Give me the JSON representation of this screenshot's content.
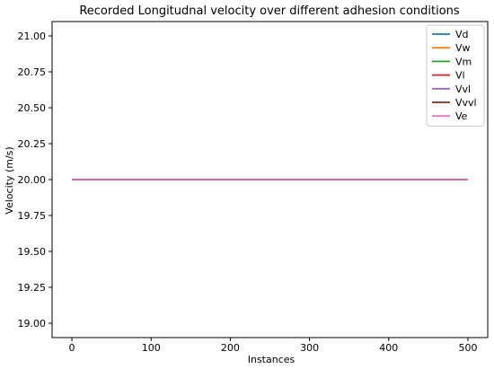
{
  "chart_data": {
    "type": "line",
    "title": "Recorded Longitudnal velocity over different adhesion conditions",
    "xlabel": "Instances",
    "ylabel": "Velocity (m/s)",
    "xlim": [
      -25,
      525
    ],
    "ylim": [
      18.9,
      21.1
    ],
    "xticks": [
      0,
      100,
      200,
      300,
      400,
      500
    ],
    "yticks": [
      19.0,
      19.25,
      19.5,
      19.75,
      20.0,
      20.25,
      20.5,
      20.75,
      21.0
    ],
    "ytick_labels": [
      "19.00",
      "19.25",
      "19.50",
      "19.75",
      "20.00",
      "20.25",
      "20.50",
      "20.75",
      "21.00"
    ],
    "grid": false,
    "legend_position": "top-right",
    "series": [
      {
        "name": "Vd",
        "color": "#1f77b4",
        "x": [
          0,
          500
        ],
        "y": [
          20.0,
          20.0
        ]
      },
      {
        "name": "Vw",
        "color": "#ff7f0e",
        "x": [
          0,
          500
        ],
        "y": [
          20.0,
          20.0
        ]
      },
      {
        "name": "Vm",
        "color": "#2ca02c",
        "x": [
          0,
          500
        ],
        "y": [
          20.0,
          20.0
        ]
      },
      {
        "name": "Vl",
        "color": "#d62728",
        "x": [
          0,
          500
        ],
        "y": [
          20.0,
          20.0
        ]
      },
      {
        "name": "Vvl",
        "color": "#9467bd",
        "x": [
          0,
          500
        ],
        "y": [
          20.0,
          20.0
        ]
      },
      {
        "name": "Vvvl",
        "color": "#8c2d19",
        "x": [
          0,
          500
        ],
        "y": [
          20.0,
          20.0
        ]
      },
      {
        "name": "Ve",
        "color": "#e377c2",
        "x": [
          0,
          500
        ],
        "y": [
          20.0,
          20.0
        ]
      }
    ]
  }
}
